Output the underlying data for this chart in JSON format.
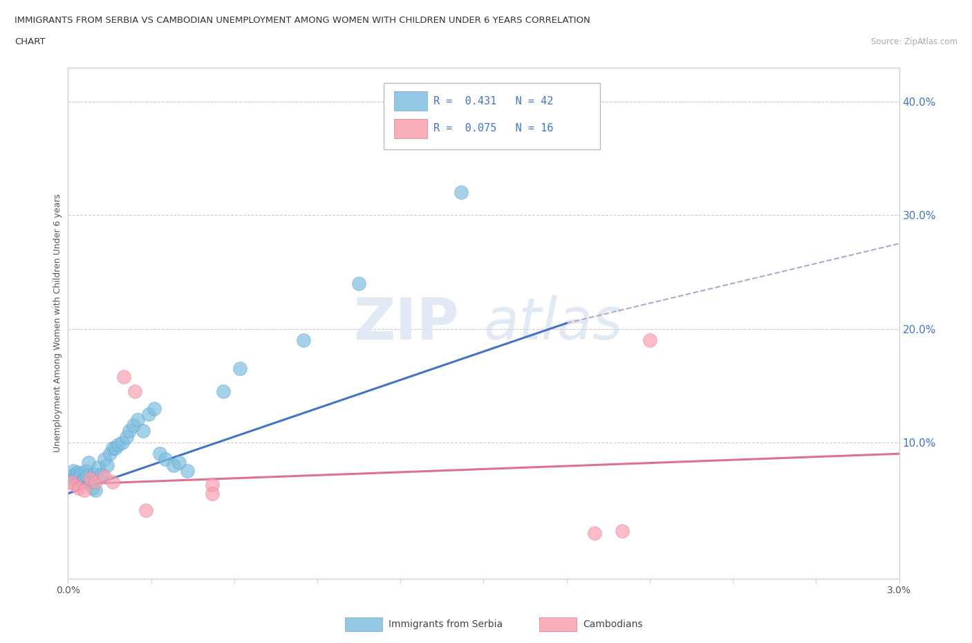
{
  "title_line1": "IMMIGRANTS FROM SERBIA VS CAMBODIAN UNEMPLOYMENT AMONG WOMEN WITH CHILDREN UNDER 6 YEARS CORRELATION",
  "title_line2": "CHART",
  "source": "Source: ZipAtlas.com",
  "ylabel": "Unemployment Among Women with Children Under 6 years",
  "xlim": [
    0.0,
    0.03
  ],
  "ylim": [
    -0.02,
    0.43
  ],
  "x_ticks": [
    0.0,
    0.003,
    0.006,
    0.009,
    0.012,
    0.015,
    0.018,
    0.021,
    0.024,
    0.027,
    0.03
  ],
  "x_tick_labels": [
    "0.0%",
    "",
    "",
    "",
    "",
    "",
    "",
    "",
    "",
    "",
    "3.0%"
  ],
  "y_ticks": [
    0.0,
    0.1,
    0.2,
    0.3,
    0.4
  ],
  "y_tick_labels": [
    "",
    "10.0%",
    "20.0%",
    "30.0%",
    "40.0%"
  ],
  "serbia_R": 0.431,
  "serbia_N": 42,
  "cambodian_R": 0.075,
  "cambodian_N": 16,
  "serbia_color": "#7fbfdf",
  "cambodian_color": "#f9a0b0",
  "serbia_scatter_x": [
    0.00015,
    0.0002,
    0.00025,
    0.0003,
    0.00035,
    0.0004,
    0.00045,
    0.0005,
    0.0006,
    0.00065,
    0.0007,
    0.00075,
    0.0008,
    0.0009,
    0.00095,
    0.001,
    0.0011,
    0.0012,
    0.0013,
    0.0014,
    0.0015,
    0.0016,
    0.0017,
    0.0018,
    0.00195,
    0.0021,
    0.0022,
    0.00235,
    0.0025,
    0.0027,
    0.0029,
    0.0031,
    0.0033,
    0.0035,
    0.0038,
    0.004,
    0.0043,
    0.0056,
    0.0062,
    0.0085,
    0.0105,
    0.0142
  ],
  "serbia_scatter_y": [
    0.068,
    0.075,
    0.072,
    0.07,
    0.074,
    0.068,
    0.072,
    0.065,
    0.068,
    0.075,
    0.07,
    0.082,
    0.065,
    0.06,
    0.072,
    0.058,
    0.078,
    0.072,
    0.085,
    0.08,
    0.09,
    0.095,
    0.095,
    0.098,
    0.1,
    0.105,
    0.11,
    0.115,
    0.12,
    0.11,
    0.125,
    0.13,
    0.09,
    0.085,
    0.08,
    0.082,
    0.075,
    0.145,
    0.165,
    0.19,
    0.24,
    0.32
  ],
  "cambodian_scatter_x": [
    0.00015,
    0.00025,
    0.0004,
    0.0006,
    0.0008,
    0.001,
    0.0013,
    0.0016,
    0.002,
    0.0024,
    0.0028,
    0.0052,
    0.0052,
    0.019,
    0.02,
    0.021
  ],
  "cambodian_scatter_y": [
    0.065,
    0.062,
    0.06,
    0.058,
    0.068,
    0.065,
    0.07,
    0.065,
    0.158,
    0.145,
    0.04,
    0.063,
    0.055,
    0.02,
    0.022,
    0.19
  ],
  "serbia_trend_x": [
    0.0,
    0.018
  ],
  "serbia_trend_y": [
    0.055,
    0.205
  ],
  "dashed_trend_x": [
    0.018,
    0.03
  ],
  "dashed_trend_y": [
    0.205,
    0.275
  ],
  "cambodian_trend_x": [
    0.0,
    0.03
  ],
  "cambodian_trend_y": [
    0.063,
    0.09
  ],
  "watermark_zip": "ZIP",
  "watermark_atlas": "atlas",
  "grid_color": "#cccccc",
  "background_color": "#ffffff",
  "legend_text_color": "#4472c4"
}
